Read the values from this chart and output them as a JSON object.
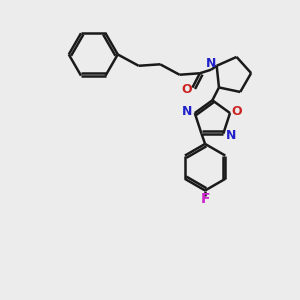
{
  "bg_color": "#ececec",
  "bond_color": "#1a1a1a",
  "bond_width": 1.8,
  "N_color": "#2222cc",
  "O_color": "#cc2222",
  "F_color": "#cc22cc",
  "font_size": 9,
  "figsize": [
    3.0,
    3.0
  ],
  "dpi": 100,
  "xlim": [
    0,
    10
  ],
  "ylim": [
    0,
    10
  ]
}
